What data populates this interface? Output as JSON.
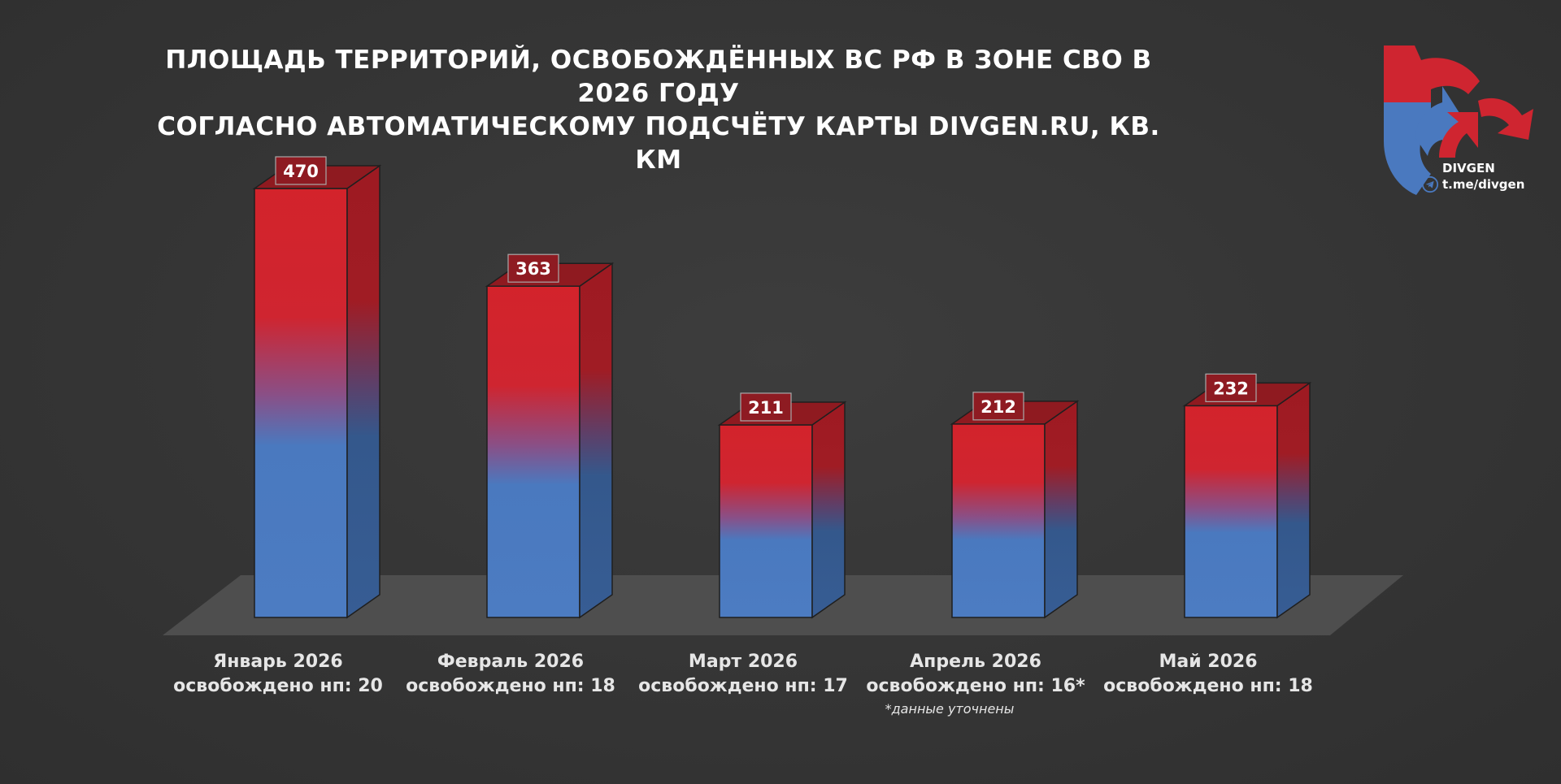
{
  "chart_data": {
    "type": "bar",
    "title": "ПЛОЩАДЬ ТЕРРИТОРИЙ, ОСВОБОЖДЁННЫХ ВС РФ В ЗОНЕ СВО В 2026 ГОДУ\nСОГЛАСНО АВТОМАТИЧЕСКОМУ ПОДСЧЁТУ КАРТЫ DIVGEN.RU, КВ. КМ",
    "categories": [
      "Январь 2026",
      "Февраль 2026",
      "Март 2026",
      "Апрель 2026",
      "Май 2026"
    ],
    "sublabels": [
      "освобождено нп: 20",
      "освобождено нп: 18",
      "освобождено нп: 17",
      "освобождено нп: 16*",
      "освобождено нп: 18"
    ],
    "values": [
      470,
      363,
      211,
      212,
      232
    ],
    "data_labels": [
      "470",
      "363",
      "211",
      "212",
      "232"
    ],
    "footnote": "*данные уточнены",
    "ylim": [
      0,
      500
    ],
    "grid": false,
    "legend": "none",
    "style": "3d-bars",
    "colors": {
      "top_red": "#d3232b",
      "bottom_blue": "#4a79bf",
      "floor": "#4f4f4f",
      "background": "#383838"
    }
  },
  "logo": {
    "name": "DIVGEN",
    "link": "t.me/divgen",
    "icon": "divgen-arrows-logo"
  }
}
